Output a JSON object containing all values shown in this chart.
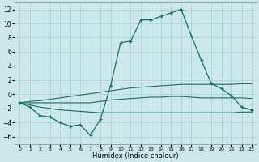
{
  "x": [
    0,
    1,
    2,
    3,
    4,
    5,
    6,
    7,
    8,
    9,
    10,
    11,
    12,
    13,
    14,
    15,
    16,
    17,
    18,
    19,
    20,
    21,
    22,
    23
  ],
  "line_main": [
    -1.2,
    -1.8,
    -3.0,
    -3.2,
    -4.0,
    -4.5,
    -4.3,
    -5.8,
    -3.5,
    1.2,
    7.3,
    7.5,
    10.5,
    10.5,
    11.0,
    11.5,
    12.0,
    8.3,
    4.8,
    1.5,
    0.8,
    -0.2,
    -1.8,
    -2.2
  ],
  "line_top": [
    -1.2,
    -1.0,
    -0.9,
    -0.7,
    -0.5,
    -0.3,
    -0.1,
    0.1,
    0.3,
    0.5,
    0.7,
    0.9,
    1.0,
    1.1,
    1.2,
    1.3,
    1.4,
    1.4,
    1.4,
    1.4,
    1.4,
    1.4,
    1.5,
    1.5
  ],
  "line_mid": [
    -1.2,
    -1.2,
    -1.2,
    -1.2,
    -1.2,
    -1.2,
    -1.2,
    -1.2,
    -1.0,
    -0.8,
    -0.7,
    -0.6,
    -0.5,
    -0.4,
    -0.4,
    -0.3,
    -0.3,
    -0.4,
    -0.5,
    -0.5,
    -0.5,
    -0.5,
    -0.5,
    -0.6
  ],
  "line_bot": [
    -1.2,
    -1.5,
    -1.8,
    -2.0,
    -2.2,
    -2.3,
    -2.4,
    -2.5,
    -2.6,
    -2.6,
    -2.6,
    -2.6,
    -2.6,
    -2.6,
    -2.6,
    -2.6,
    -2.6,
    -2.6,
    -2.6,
    -2.6,
    -2.6,
    -2.6,
    -2.5,
    -2.5
  ],
  "bg_color": "#cce8e8",
  "grid_color": "#aad4d4",
  "line_color": "#1a6e5e",
  "xlabel": "Humidex (Indice chaleur)",
  "ylim": [
    -7,
    13
  ],
  "xlim": [
    -0.5,
    23.5
  ],
  "yticks": [
    -6,
    -4,
    -2,
    0,
    2,
    4,
    6,
    8,
    10,
    12
  ],
  "xticks": [
    0,
    1,
    2,
    3,
    4,
    5,
    6,
    7,
    8,
    9,
    10,
    11,
    12,
    13,
    14,
    15,
    16,
    17,
    18,
    19,
    20,
    21,
    22,
    23
  ]
}
